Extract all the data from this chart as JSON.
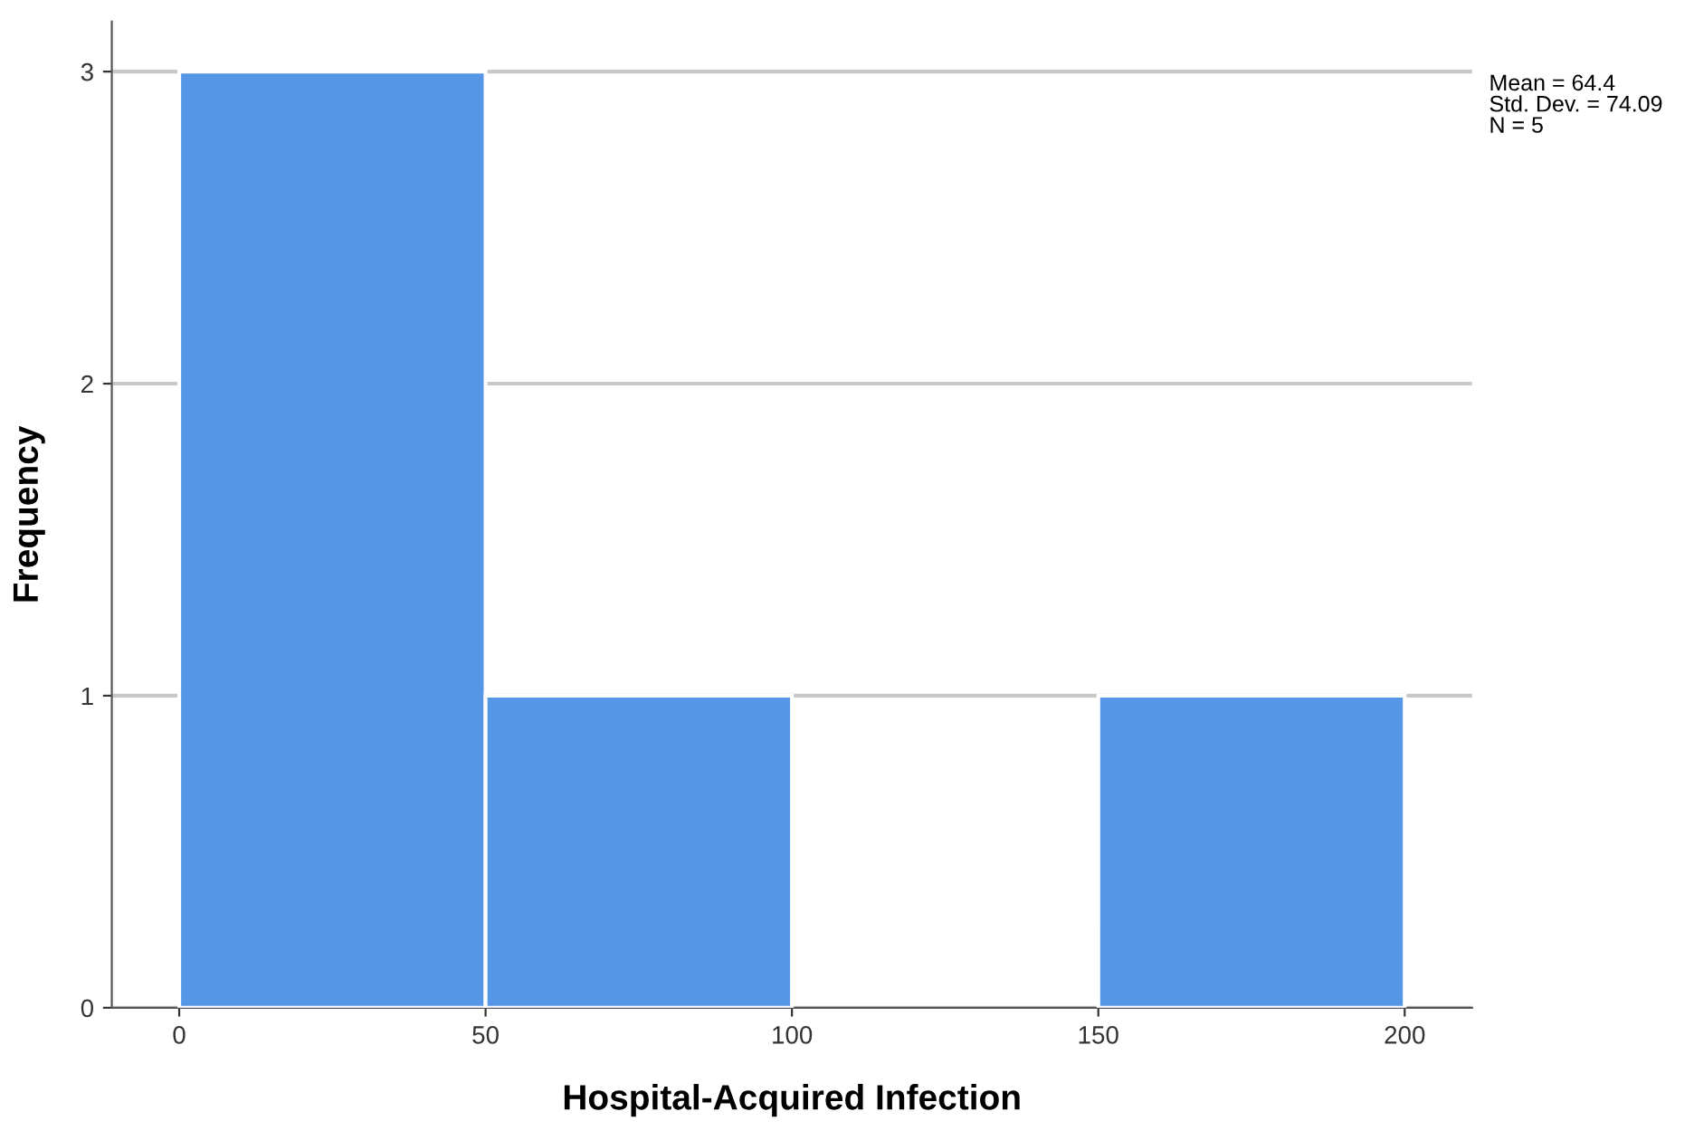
{
  "chart_data": {
    "type": "histogram",
    "xlabel": "Hospital-Acquired Infection",
    "ylabel": "Frequency",
    "bins": [
      0,
      50,
      100,
      150,
      200
    ],
    "values": [
      3,
      1,
      0,
      1
    ],
    "color": "#5596e6",
    "xlim": [
      -11,
      211
    ],
    "xticks": [
      0,
      50,
      100,
      150,
      200
    ],
    "ylim": [
      0,
      3.16
    ],
    "yticks": [
      0,
      1,
      2,
      3
    ],
    "grid": "y",
    "annotations": [
      "Mean = 64.4\nStd. Dev. = 74.09\nN = 5"
    ]
  }
}
